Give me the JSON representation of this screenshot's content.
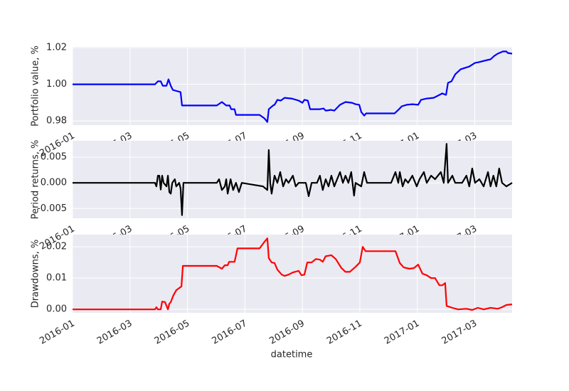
{
  "chart_data": {
    "type": "line",
    "xlabel": "datetime",
    "xlim": [
      0,
      15.3
    ],
    "xticks": [
      {
        "value": 0,
        "label": "2016-01"
      },
      {
        "value": 2,
        "label": "2016-03"
      },
      {
        "value": 4,
        "label": "2016-05"
      },
      {
        "value": 6,
        "label": "2016-07"
      },
      {
        "value": 8,
        "label": "2016-09"
      },
      {
        "value": 10,
        "label": "2016-11"
      },
      {
        "value": 12,
        "label": "2017-01"
      },
      {
        "value": 14,
        "label": "2017-03"
      }
    ],
    "grid": true,
    "panels": [
      {
        "ylabel": "Portfolio value, %",
        "ylim": [
          0.9777,
          1.0204
        ],
        "yticks": [
          {
            "value": 0.98,
            "label": "0.98"
          },
          {
            "value": 1.0,
            "label": "1.00"
          },
          1.02
        ],
        "color": "#0000ff",
        "x": [
          0,
          2.87,
          2.97,
          3.07,
          3.14,
          3.27,
          3.34,
          3.42,
          3.49,
          3.76,
          3.81,
          5.02,
          5.2,
          5.35,
          5.47,
          5.52,
          5.64,
          5.69,
          6.51,
          6.68,
          6.78,
          6.83,
          6.98,
          7.03,
          7.13,
          7.25,
          7.38,
          7.62,
          7.87,
          8.0,
          8.07,
          8.19,
          8.27,
          8.61,
          8.74,
          8.81,
          8.99,
          9.11,
          9.31,
          9.5,
          9.73,
          9.85,
          9.98,
          10.05,
          10.15,
          10.22,
          11.21,
          11.34,
          11.46,
          11.63,
          11.83,
          12.03,
          12.13,
          12.33,
          12.57,
          12.77,
          12.87,
          13.0,
          13.07,
          13.19,
          13.32,
          13.51,
          13.81,
          14.01,
          14.13,
          14.43,
          14.55,
          14.68,
          14.8,
          14.98,
          15.1,
          15.15,
          15.3
        ],
        "values": [
          1.0,
          1.0,
          1.0016,
          1.0016,
          0.9992,
          0.9992,
          1.0027,
          0.9992,
          0.9969,
          0.9957,
          0.9884,
          0.9884,
          0.9903,
          0.9884,
          0.9884,
          0.9864,
          0.9864,
          0.9833,
          0.9833,
          0.9814,
          0.9794,
          0.9864,
          0.9884,
          0.9888,
          0.9915,
          0.9911,
          0.9926,
          0.9922,
          0.9911,
          0.9899,
          0.9915,
          0.9911,
          0.9864,
          0.9864,
          0.9868,
          0.9856,
          0.986,
          0.9856,
          0.9888,
          0.9903,
          0.9899,
          0.9891,
          0.9888,
          0.9849,
          0.9829,
          0.9841,
          0.9841,
          0.986,
          0.988,
          0.9888,
          0.9891,
          0.9888,
          0.9915,
          0.9922,
          0.9926,
          0.9942,
          0.995,
          0.9942,
          1.0008,
          1.0016,
          1.0054,
          1.0082,
          1.0097,
          1.0117,
          1.012,
          1.0132,
          1.0136,
          1.0155,
          1.0167,
          1.0179,
          1.0179,
          1.0171,
          1.0167
        ]
      },
      {
        "ylabel": "Period returns, %",
        "ylim": [
          -0.0069,
          0.0082
        ],
        "yticks": [
          -0.005,
          {
            "value": 0,
            "label": "0.000"
          },
          0.005
        ],
        "color": "#000000",
        "x": [
          0,
          2.87,
          2.92,
          2.97,
          3.02,
          3.07,
          3.12,
          3.17,
          3.27,
          3.32,
          3.37,
          3.42,
          3.47,
          3.56,
          3.61,
          3.71,
          3.76,
          3.81,
          3.86,
          5.02,
          5.1,
          5.2,
          5.3,
          5.35,
          5.4,
          5.5,
          5.59,
          5.69,
          5.79,
          5.89,
          6.63,
          6.78,
          6.83,
          6.88,
          6.93,
          7.03,
          7.13,
          7.23,
          7.33,
          7.43,
          7.52,
          7.67,
          7.77,
          7.87,
          8.12,
          8.22,
          8.32,
          8.51,
          8.61,
          8.71,
          8.81,
          8.91,
          9.01,
          9.11,
          9.21,
          9.31,
          9.41,
          9.5,
          9.6,
          9.7,
          9.8,
          9.85,
          10.05,
          10.15,
          10.25,
          11.09,
          11.24,
          11.34,
          11.39,
          11.49,
          11.58,
          11.68,
          11.83,
          11.98,
          12.08,
          12.23,
          12.33,
          12.48,
          12.62,
          12.82,
          12.92,
          13.02,
          13.07,
          13.22,
          13.32,
          13.56,
          13.71,
          13.81,
          13.91,
          14.01,
          14.16,
          14.31,
          14.46,
          14.55,
          14.65,
          14.75,
          14.85,
          14.95,
          15.1,
          15.3
        ],
        "values": [
          0,
          0,
          -0.0007,
          0.0014,
          0.0014,
          -0.0013,
          0.0014,
          0,
          -0.0007,
          0.0014,
          -0.0018,
          -0.0021,
          0,
          0.0007,
          -0.0007,
          0,
          -0.0011,
          -0.0063,
          0,
          0,
          0.0007,
          -0.0014,
          -0.0007,
          0.0007,
          -0.0021,
          0.0007,
          -0.0014,
          0,
          -0.0018,
          0,
          -0.0007,
          -0.0014,
          0.0064,
          0,
          -0.0021,
          0.0014,
          0,
          0.0021,
          -0.0007,
          0.0007,
          0,
          0.0014,
          -0.0007,
          0,
          0,
          -0.0026,
          0,
          0,
          0.0014,
          -0.0014,
          0.0007,
          -0.0007,
          0.0014,
          -0.0007,
          0.0007,
          0.0021,
          0,
          0.0014,
          0,
          0.0021,
          -0.0025,
          0,
          -0.0007,
          0.0021,
          0,
          0,
          0.0021,
          0,
          0.0021,
          -0.0007,
          0.0007,
          0,
          0.0014,
          -0.0007,
          0.0007,
          0.0021,
          0,
          0.0014,
          0.0007,
          0.0021,
          0,
          0.0076,
          0,
          0.0014,
          0,
          0,
          0.0014,
          -0.0007,
          0.0028,
          0,
          0.0007,
          -0.0007,
          0.0021,
          -0.0007,
          0.0014,
          -0.0007,
          0.0028,
          0,
          -0.0007,
          0
        ]
      },
      {
        "ylabel": "Drawdowns, %",
        "ylim": [
          -0.0011,
          0.0239
        ],
        "yticks": [
          {
            "value": 0,
            "label": "0.00"
          },
          0.01,
          0.02
        ],
        "color": "#ff0000",
        "x": [
          0,
          2.87,
          2.92,
          2.97,
          3.07,
          3.12,
          3.22,
          3.32,
          3.37,
          3.42,
          3.51,
          3.61,
          3.71,
          3.79,
          3.84,
          5.02,
          5.2,
          5.3,
          5.4,
          5.45,
          5.64,
          5.74,
          6.51,
          6.68,
          6.78,
          6.83,
          6.93,
          7.03,
          7.13,
          7.28,
          7.38,
          7.52,
          7.67,
          7.87,
          7.97,
          8.07,
          8.17,
          8.32,
          8.47,
          8.61,
          8.71,
          8.81,
          9.01,
          9.16,
          9.36,
          9.5,
          9.65,
          9.85,
          10.0,
          10.1,
          10.2,
          11.24,
          11.39,
          11.53,
          11.73,
          11.88,
          12.03,
          12.18,
          12.33,
          12.48,
          12.62,
          12.77,
          12.87,
          12.97,
          13.02,
          13.22,
          13.42,
          13.71,
          13.91,
          14.11,
          14.31,
          14.55,
          14.8,
          14.95,
          15.1,
          15.3
        ],
        "values": [
          0,
          0,
          0.0007,
          0,
          0,
          0.0025,
          0.0023,
          0,
          0.0018,
          0.0023,
          0.0045,
          0.0061,
          0.0068,
          0.0073,
          0.0139,
          0.0139,
          0.013,
          0.0141,
          0.0141,
          0.0152,
          0.0152,
          0.0195,
          0.0195,
          0.0216,
          0.0227,
          0.0164,
          0.015,
          0.0148,
          0.0127,
          0.0111,
          0.0107,
          0.0111,
          0.0118,
          0.0123,
          0.0109,
          0.0111,
          0.015,
          0.015,
          0.0161,
          0.0159,
          0.0152,
          0.017,
          0.0173,
          0.0161,
          0.0132,
          0.012,
          0.012,
          0.0136,
          0.015,
          0.02,
          0.0186,
          0.0186,
          0.0148,
          0.0134,
          0.013,
          0.0132,
          0.0143,
          0.0114,
          0.0109,
          0.01,
          0.01,
          0.0077,
          0.0077,
          0.0084,
          0.0011,
          0.0005,
          0,
          0.0002,
          -0.0002,
          0.0005,
          0,
          0.0005,
          0.0002,
          0.0007,
          0.0014,
          0.0016
        ]
      }
    ]
  }
}
